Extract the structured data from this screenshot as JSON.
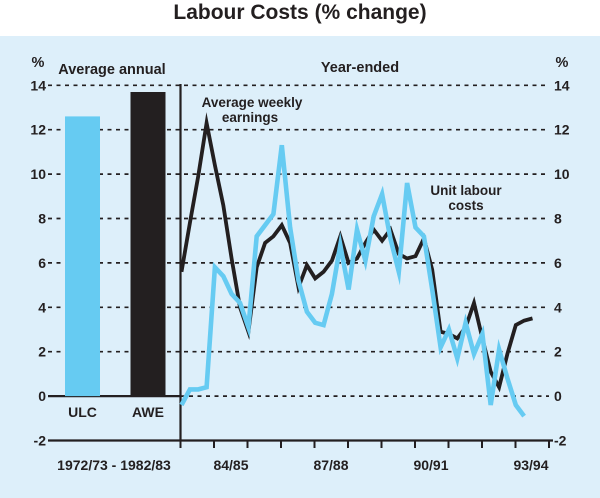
{
  "title": "Labour Costs (% change)",
  "colors": {
    "background": "#ddeffa",
    "ulc_blue": "#66cbf2",
    "awe_black": "#231f20",
    "grid": "#231f20",
    "text": "#231f20"
  },
  "y_axis": {
    "unit": "%",
    "ticks": [
      14,
      12,
      10,
      8,
      6,
      4,
      2,
      0,
      -2
    ],
    "range": [
      -2,
      14
    ]
  },
  "left_panel": {
    "header": "Average annual",
    "unit_label": "%",
    "bars": [
      {
        "label": "ULC",
        "value": 12.6,
        "color": "#66cbf2"
      },
      {
        "label": "AWE",
        "value": 13.7,
        "color": "#231f20"
      }
    ],
    "period_label": "1972/73 - 1982/83"
  },
  "right_panel": {
    "header": "Year-ended",
    "unit_label": "%",
    "annotations": {
      "awe_label_line1": "Average weekly",
      "awe_label_line2": "earnings",
      "ulc_label_line1": "Unit labour",
      "ulc_label_line2": "costs"
    },
    "x_tick_labels": [
      "84/85",
      "87/88",
      "90/91",
      "93/94"
    ]
  },
  "chart_data": [
    {
      "type": "bar",
      "title": "Average annual",
      "period": "1972/73 - 1982/83",
      "categories": [
        "ULC",
        "AWE"
      ],
      "values": [
        12.6,
        13.7
      ],
      "ylabel": "%",
      "ylim": [
        -2,
        14
      ],
      "grid": "dashed-horizontal"
    },
    {
      "type": "line",
      "title": "Year-ended",
      "x_unit": "quarter",
      "x_start": "Jun-1983",
      "x_interval_years_per_tick": 1,
      "x_tick_labels": [
        "84/85",
        "87/88",
        "90/91",
        "93/94"
      ],
      "ylabel": "%",
      "ylim": [
        -2,
        14
      ],
      "grid": "dashed-horizontal",
      "legend_position": "inline-annotations",
      "series": [
        {
          "key": "awe-line",
          "name": "Average weekly earnings",
          "color": "#231f20",
          "values": [
            5.6,
            7.8,
            9.9,
            12.3,
            10.4,
            8.6,
            6.2,
            4.0,
            2.9,
            5.8,
            6.9,
            7.2,
            7.7,
            6.9,
            4.9,
            5.9,
            5.3,
            5.6,
            6.1,
            7.2,
            6.0,
            6.2,
            6.9,
            7.5,
            7.0,
            7.5,
            6.4,
            6.2,
            6.3,
            7.1,
            5.7,
            2.9,
            2.8,
            2.6,
            3.1,
            4.2,
            2.6,
            1.1,
            0.4,
            1.9,
            3.2,
            3.4,
            3.5
          ]
        },
        {
          "key": "ulc-line",
          "name": "Unit labour costs",
          "color": "#66cbf2",
          "values": [
            -0.4,
            0.3,
            0.3,
            0.4,
            5.8,
            5.4,
            4.6,
            4.2,
            3.1,
            7.2,
            7.7,
            8.2,
            11.3,
            7.6,
            5.2,
            3.8,
            3.3,
            3.2,
            4.6,
            6.8,
            4.8,
            7.5,
            6.1,
            8.1,
            9.1,
            7.1,
            5.6,
            9.6,
            7.6,
            7.2,
            4.8,
            2.2,
            3.0,
            1.7,
            3.3,
            1.9,
            2.8,
            -0.4,
            2.1,
            0.8,
            -0.4,
            -0.9
          ]
        }
      ]
    }
  ]
}
